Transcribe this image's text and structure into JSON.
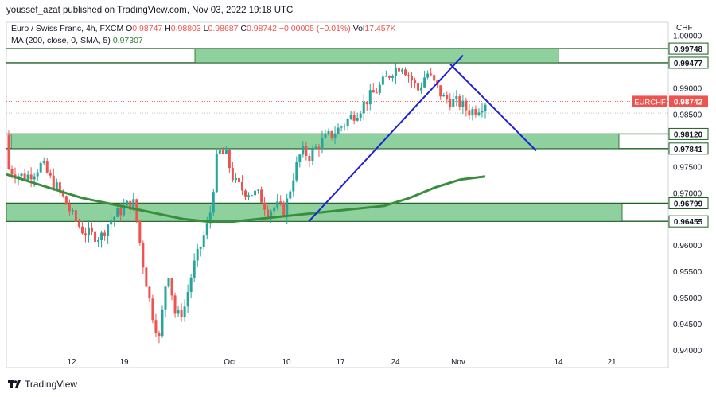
{
  "header": {
    "publish_line": "youssef_azat published on TradingView.com, Nov 03, 2022 19:18 UTC"
  },
  "legend": {
    "symbol": "Euro / Swiss Franc, 4h, FXCM",
    "o_label": "O",
    "o_value": "0.98747",
    "h_label": "H",
    "h_value": "0.98803",
    "l_label": "L",
    "l_value": "0.98687",
    "c_label": "C",
    "c_value": "0.98742",
    "change": "−0.00005 (−0.01%)",
    "vol_label": "Vol",
    "vol_value": "17.457K",
    "ma_label": "MA (200, close, 0, SMA, 5)",
    "ma_value": "0.97307"
  },
  "footer": {
    "brand": "TradingView"
  },
  "colors": {
    "up": "#26a69a",
    "down": "#ef5350",
    "zone_fill": "#8fd19e",
    "zone_border": "#1b5e20",
    "ma": "#388e3c",
    "trendline": "#1f1fd6",
    "price_tag": "#ef5350"
  },
  "chart_data": {
    "type": "candlestick",
    "symbol": "EURCHF",
    "currency": "CHF",
    "timeframe": "4h",
    "ylim": [
      0.94,
      1.0
    ],
    "y_ticks": [
      "1.00000",
      "0.99000",
      "0.98500",
      "0.97500",
      "0.97000",
      "0.96000",
      "0.95500",
      "0.95000",
      "0.94500",
      "0.94000"
    ],
    "x_ticks": [
      "12",
      "19",
      "Oct",
      "10",
      "17",
      "24",
      "Nov",
      "14",
      "21"
    ],
    "last_price": {
      "label": "EURCHF",
      "value": "0.98742"
    },
    "zones": [
      {
        "top": 0.99748,
        "bottom": 0.99477,
        "top_label": "0.99748",
        "bottom_label": "0.99477"
      },
      {
        "top": 0.9812,
        "bottom": 0.97841,
        "top_label": "0.98120",
        "bottom_label": "0.97841"
      },
      {
        "top": 0.96799,
        "bottom": 0.96455,
        "top_label": "0.96799",
        "bottom_label": "0.96455"
      }
    ],
    "price_path": [
      [
        0.981,
        0.9745
      ],
      [
        0.976,
        0.9735
      ],
      [
        0.974,
        0.973
      ],
      [
        0.973,
        0.974
      ],
      [
        0.975,
        0.9755
      ],
      [
        0.976,
        0.9725
      ],
      [
        0.974,
        0.9705
      ],
      [
        0.971,
        0.9675
      ],
      [
        0.969,
        0.9645
      ],
      [
        0.966,
        0.9625
      ],
      [
        0.963,
        0.962
      ],
      [
        0.962,
        0.9615
      ],
      [
        0.96,
        0.9645
      ],
      [
        0.963,
        0.966
      ],
      [
        0.965,
        0.9675
      ],
      [
        0.966,
        0.968
      ],
      [
        0.963,
        0.957
      ],
      [
        0.952,
        0.948
      ],
      [
        0.944,
        0.942
      ],
      [
        0.945,
        0.956
      ],
      [
        0.955,
        0.946
      ],
      [
        0.948,
        0.948
      ],
      [
        0.952,
        0.9555
      ],
      [
        0.956,
        0.96
      ],
      [
        0.962,
        0.965
      ],
      [
        0.972,
        0.978
      ],
      [
        0.979,
        0.977
      ],
      [
        0.976,
        0.972
      ],
      [
        0.972,
        0.9705
      ],
      [
        0.969,
        0.97
      ],
      [
        0.968,
        0.9695
      ],
      [
        0.969,
        0.9665
      ],
      [
        0.969,
        0.9675
      ],
      [
        0.968,
        0.9665
      ],
      [
        0.969,
        0.973
      ],
      [
        0.977,
        0.978
      ],
      [
        0.978,
        0.977
      ],
      [
        0.977,
        0.979
      ],
      [
        0.979,
        0.9805
      ],
      [
        0.981,
        0.9815
      ],
      [
        0.983,
        0.983
      ],
      [
        0.983,
        0.9845
      ],
      [
        0.985,
        0.986
      ],
      [
        0.986,
        0.988
      ],
      [
        0.988,
        0.9895
      ],
      [
        0.99,
        0.9915
      ],
      [
        0.992,
        0.9935
      ],
      [
        0.993,
        0.9945
      ],
      [
        0.994,
        0.992
      ],
      [
        0.991,
        0.9895
      ],
      [
        0.992,
        0.993
      ],
      [
        0.993,
        0.9905
      ],
      [
        0.99,
        0.988
      ],
      [
        0.988,
        0.9875
      ],
      [
        0.987,
        0.987
      ],
      [
        0.986,
        0.9855
      ],
      [
        0.985,
        0.986
      ],
      [
        0.986,
        0.9874
      ]
    ],
    "ma200": [
      0.9735,
      0.972,
      0.9705,
      0.969,
      0.968,
      0.967,
      0.966,
      0.965,
      0.9645,
      0.9645,
      0.965,
      0.9655,
      0.966,
      0.9665,
      0.967,
      0.9675,
      0.969,
      0.971,
      0.9725,
      0.9731
    ],
    "trendlines": [
      {
        "from": [
          "Oct 13",
          0.9645
        ],
        "to": [
          "Oct 31",
          0.9962
        ]
      },
      {
        "from": [
          "Oct 30",
          0.9945
        ],
        "to": [
          "Nov 10",
          0.978
        ]
      }
    ]
  }
}
